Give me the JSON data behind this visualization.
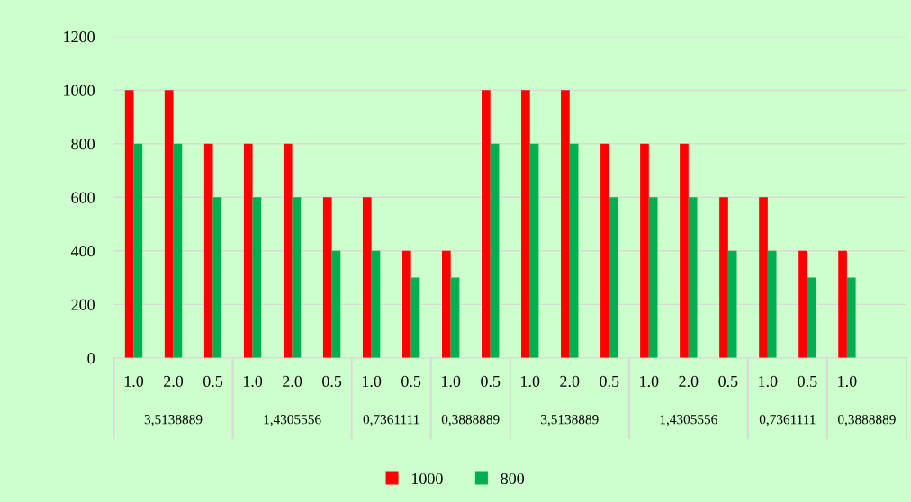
{
  "chart_data": {
    "type": "bar",
    "categories": [
      "1.0",
      "2.0",
      "0.5",
      "1.0",
      "2.0",
      "0.5",
      "1.0",
      "0.5",
      "1.0",
      "0.5",
      "1.0",
      "2.0",
      "0.5",
      "1.0",
      "2.0",
      "0.5",
      "1.0",
      "0.5",
      "1.0",
      null
    ],
    "series": [
      {
        "name": "1000",
        "color": "#ff0000",
        "values": [
          1000,
          1000,
          800,
          800,
          800,
          600,
          600,
          400,
          400,
          1000,
          1000,
          1000,
          800,
          800,
          800,
          600,
          600,
          400,
          400,
          null
        ]
      },
      {
        "name": "800",
        "color": "#00b050",
        "values": [
          800,
          800,
          600,
          600,
          600,
          400,
          400,
          300,
          300,
          800,
          800,
          800,
          600,
          600,
          600,
          400,
          400,
          300,
          300,
          null
        ]
      }
    ],
    "annotations": [
      "3,5138889",
      "1,4305556",
      "0,7361111",
      "0,3888889",
      "3,5138889",
      "1,4305556",
      "0,7361111",
      "0,3888889"
    ],
    "ylim": [
      0,
      1200
    ],
    "yticks": [
      0,
      200,
      400,
      600,
      800,
      1000,
      1200
    ],
    "grid": "y",
    "legend": "bottom"
  }
}
